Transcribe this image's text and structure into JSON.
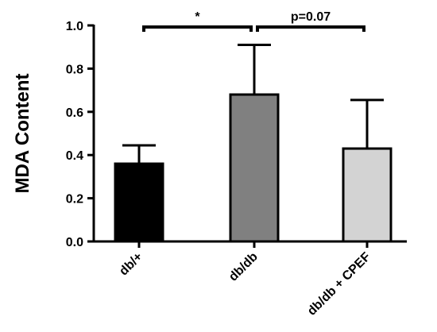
{
  "chart_data": {
    "type": "bar",
    "ylabel": "MDA Content",
    "ylim": [
      0,
      1.0
    ],
    "yticks": [
      "0.0",
      "0.2",
      "0.4",
      "0.6",
      "0.8",
      "1.0"
    ],
    "categories": [
      "db/+",
      "db/db",
      "db/db + CPEF"
    ],
    "values": [
      0.36,
      0.68,
      0.43
    ],
    "error_upper": [
      0.445,
      0.91,
      0.655
    ],
    "bar_colors": [
      "#000000",
      "#808080",
      "#d3d3d3"
    ],
    "edge_color": "#000000",
    "grid": false,
    "annotations": [
      {
        "from": 0,
        "to": 1,
        "label": "*"
      },
      {
        "from": 1,
        "to": 2,
        "label": "p=0.07"
      }
    ]
  }
}
